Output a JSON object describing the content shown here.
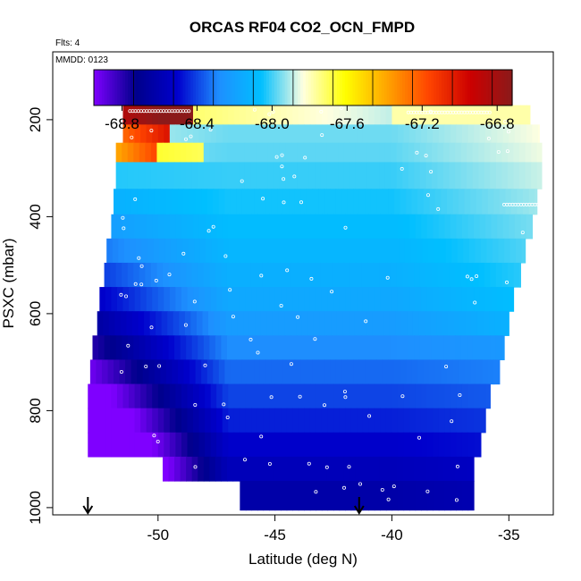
{
  "chart_data": {
    "type": "heatmap",
    "title": "ORCAS RF04 CO2_OCN_FMPD",
    "subtitle_left": "Flts: 4",
    "inset_label": "MMDD: 0123",
    "xlabel": "Latitude (deg N)",
    "ylabel": "PSXC (mbar)",
    "xlim": [
      -54.5,
      -33.1
    ],
    "ylim": [
      1015,
      60
    ],
    "y_reversed": true,
    "xticks": [
      -50,
      -45,
      -40,
      -35
    ],
    "yticks": [
      200,
      400,
      600,
      800,
      1000
    ],
    "colorbar": {
      "range": [
        -68.95,
        -66.72
      ],
      "ticks": [
        -68.8,
        -68.4,
        -68.0,
        -67.6,
        -67.2,
        -66.8
      ],
      "tick_labels": [
        "-68.8",
        "-68.4",
        "-68.0",
        "-67.6",
        "-67.2",
        "-66.8"
      ],
      "palette": [
        "#7f00ff",
        "#00008b",
        "#0000cd",
        "#1e90ff",
        "#00bfff",
        "#ffffe0",
        "#ffff00",
        "#ffa500",
        "#ff4500",
        "#cc0000",
        "#8b1a1a"
      ]
    },
    "pressure_bands": [
      {
        "p": 185,
        "lat_min": -51.5,
        "lat_max": -34.1
      },
      {
        "p": 235,
        "lat_min": -51.5,
        "lat_max": -33.7
      },
      {
        "p": 260,
        "lat_min": -51.8,
        "lat_max": -33.6
      },
      {
        "p": 315,
        "lat_min": -51.8,
        "lat_max": -33.6
      },
      {
        "p": 370,
        "lat_min": -51.9,
        "lat_max": -33.8
      },
      {
        "p": 420,
        "lat_min": -52.0,
        "lat_max": -34.0
      },
      {
        "p": 470,
        "lat_min": -52.2,
        "lat_max": -34.3
      },
      {
        "p": 520,
        "lat_min": -52.3,
        "lat_max": -34.5
      },
      {
        "p": 570,
        "lat_min": -52.5,
        "lat_max": -34.8
      },
      {
        "p": 620,
        "lat_min": -52.6,
        "lat_max": -35.0
      },
      {
        "p": 670,
        "lat_min": -52.8,
        "lat_max": -35.2
      },
      {
        "p": 720,
        "lat_min": -52.9,
        "lat_max": -35.4
      },
      {
        "p": 770,
        "lat_min": -53.0,
        "lat_max": -35.8
      },
      {
        "p": 820,
        "lat_min": -53.0,
        "lat_max": -36.0
      },
      {
        "p": 870,
        "lat_min": -53.0,
        "lat_max": -36.2
      },
      {
        "p": 920,
        "lat_min": -49.8,
        "lat_max": -36.5
      },
      {
        "p": 970,
        "lat_min": -46.5,
        "lat_max": -36.5
      }
    ],
    "special_patches": [
      {
        "lat_from": -51.5,
        "lat_to": -48.5,
        "p_from": 170,
        "p_to": 210,
        "value": -66.85
      },
      {
        "lat_from": -51.5,
        "lat_to": -49.5,
        "p_from": 210,
        "p_to": 255,
        "value": -67.25
      },
      {
        "lat_from": -51.8,
        "lat_to": -50.0,
        "p_from": 255,
        "p_to": 285,
        "value": -67.4
      }
    ],
    "markers": [
      {
        "lat": -53.0,
        "label": "↓"
      },
      {
        "lat": -41.4,
        "label": "↓"
      }
    ],
    "grid": false,
    "legend": "top"
  }
}
